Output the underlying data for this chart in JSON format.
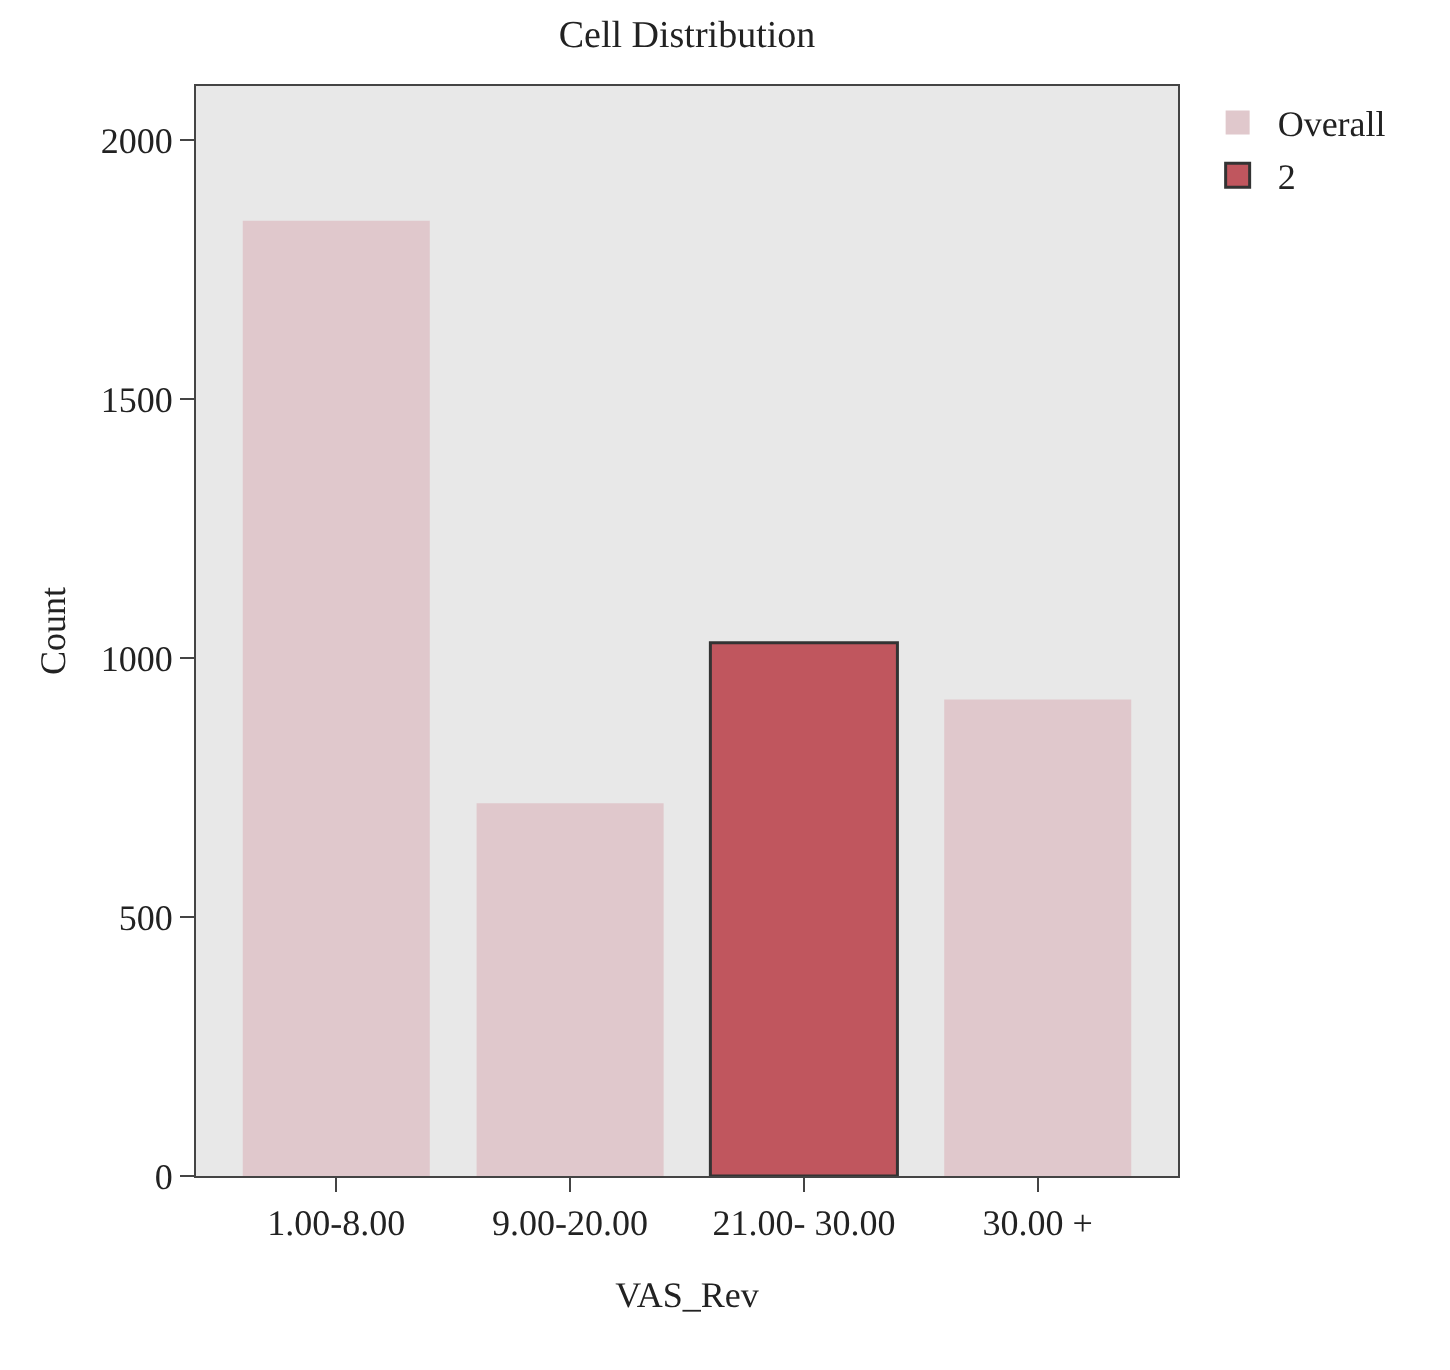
{
  "chart_data": {
    "type": "bar",
    "title": "Cell Distribution",
    "xlabel": "VAS_Rev",
    "ylabel": "Count",
    "categories": [
      "1.00-8.00",
      "9.00-20.00",
      "21.00- 30.00",
      "30.00 +"
    ],
    "series": [
      {
        "name": "Overall",
        "color": "#e0c8cc",
        "values": [
          1845,
          720,
          null,
          920
        ]
      },
      {
        "name": "2",
        "color": "#c0565e",
        "values": [
          null,
          null,
          1030,
          null
        ]
      }
    ],
    "ylim": [
      0,
      2105
    ],
    "yticks": [
      0,
      500,
      1000,
      1500,
      2000
    ],
    "grid": false,
    "legend": "top right"
  }
}
